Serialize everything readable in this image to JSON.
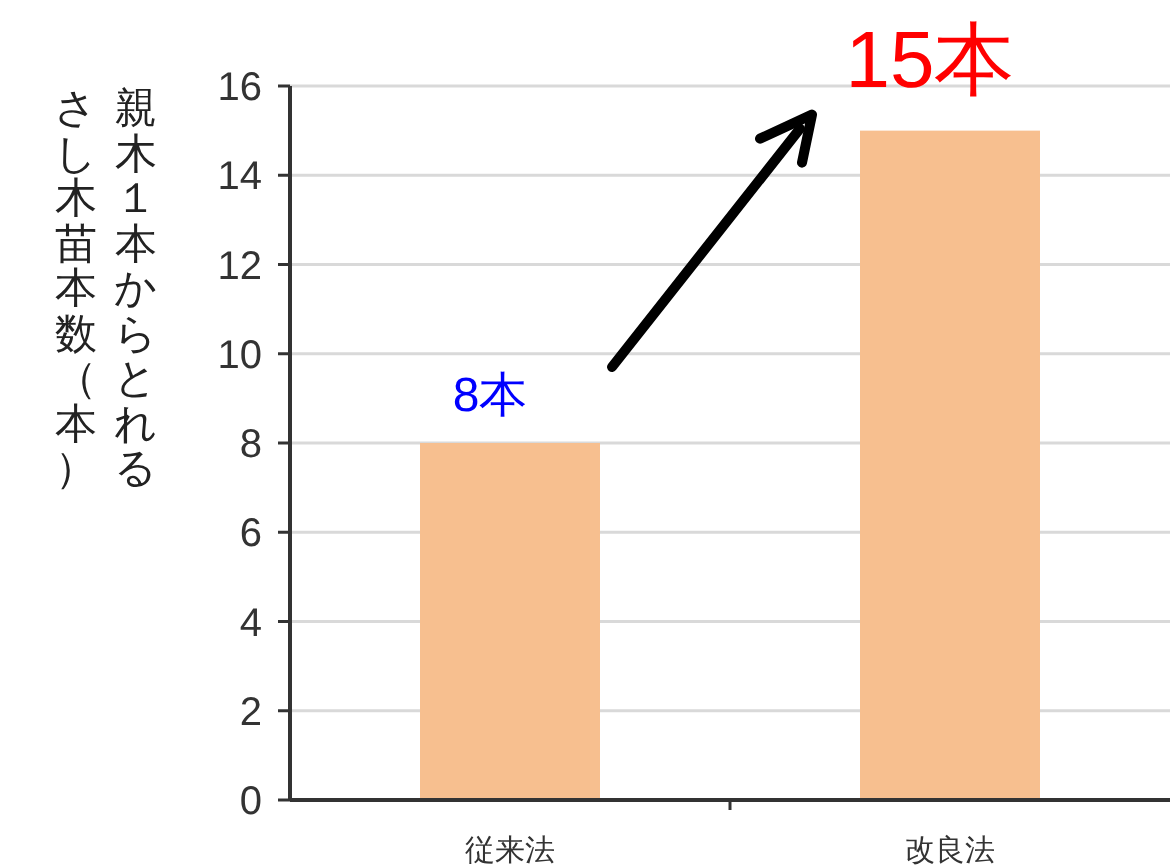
{
  "chart_data": {
    "type": "bar",
    "ylabel": "親木１本からとれるさし木苗本数（本）",
    "categories": [
      "従来法",
      "改良法"
    ],
    "values": [
      8,
      15
    ],
    "color": "#f7bf8f",
    "value_labels": [
      "8本",
      "15本"
    ],
    "ylim": [
      0,
      16
    ],
    "yticks": [
      0,
      2,
      4,
      6,
      8,
      10,
      12,
      14,
      16
    ],
    "grid": "y"
  }
}
